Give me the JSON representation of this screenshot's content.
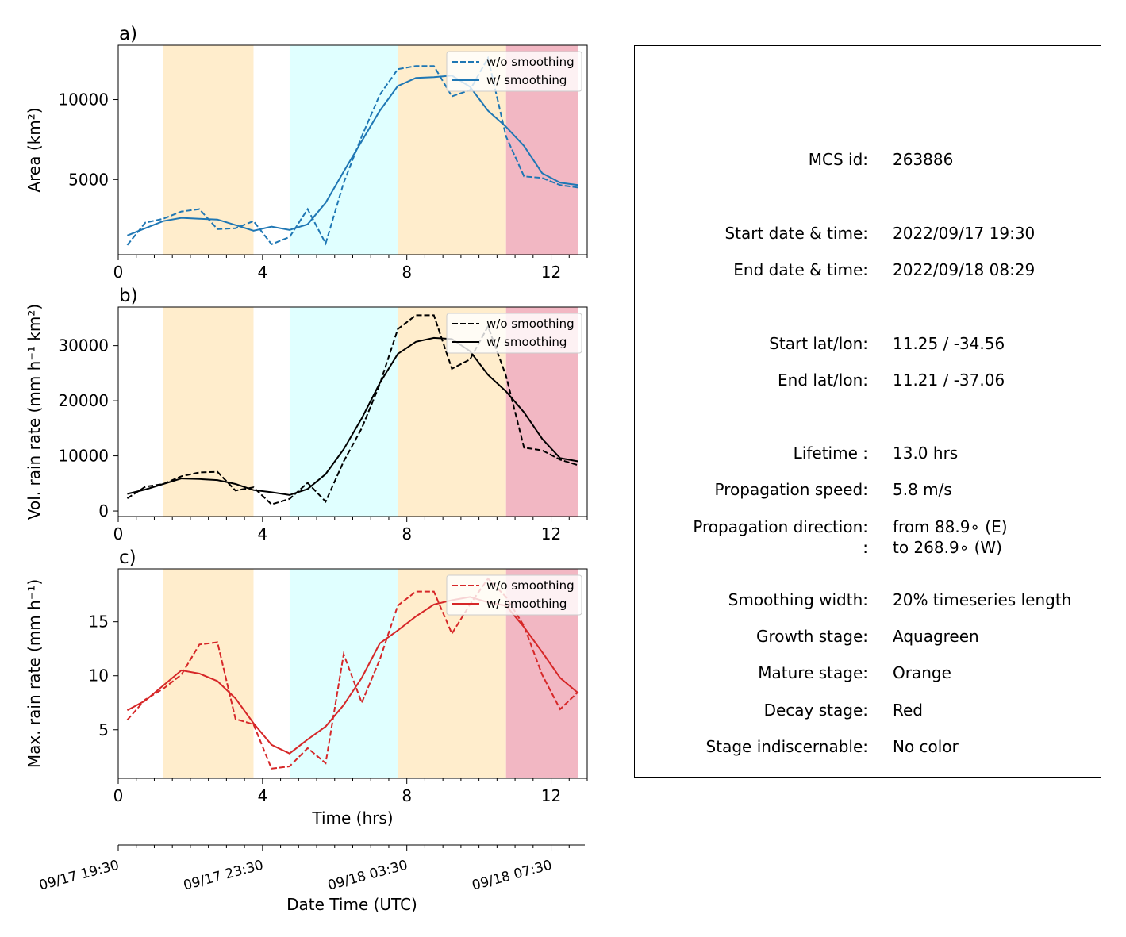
{
  "colors": {
    "blue": "#1f77b4",
    "black": "#000000",
    "red": "#d62728",
    "growth_band": "#e0ffff",
    "mature_band": "#ffedcc",
    "decay_band": "#f2b7c3"
  },
  "stage_bands": [
    {
      "stage": "mature",
      "x0": 1.25,
      "x1": 3.75
    },
    {
      "stage": "growth",
      "x0": 4.75,
      "x1": 7.75
    },
    {
      "stage": "mature",
      "x0": 7.75,
      "x1": 10.75
    },
    {
      "stage": "decay",
      "x0": 10.75,
      "x1": 12.75
    }
  ],
  "chart_data": [
    {
      "type": "line",
      "panel_label": "a)",
      "ylabel": "Area  (km²)",
      "xlim": [
        0,
        13
      ],
      "ylim": [
        300,
        13400
      ],
      "xticks": [
        "0",
        "4",
        "8",
        "12"
      ],
      "yticks": [
        "5000",
        "10000"
      ],
      "ytick_values": [
        5000,
        10000
      ],
      "grid": false,
      "legend": "top-right",
      "color": "#1f77b4",
      "x": [
        0.25,
        0.75,
        1.25,
        1.75,
        2.25,
        2.75,
        3.25,
        3.75,
        4.25,
        4.75,
        5.25,
        5.75,
        6.25,
        6.75,
        7.25,
        7.75,
        8.25,
        8.75,
        9.25,
        9.75,
        10.25,
        10.75,
        11.25,
        11.75,
        12.25,
        12.75
      ],
      "series": [
        {
          "name": "w/o smoothing",
          "style": "dashed",
          "values": [
            900,
            2300,
            2550,
            3000,
            3150,
            1900,
            1950,
            2400,
            950,
            1400,
            3150,
            1000,
            4800,
            7700,
            10300,
            11900,
            12100,
            12100,
            10200,
            10600,
            12600,
            7700,
            5200,
            5100,
            4650,
            4500
          ]
        },
        {
          "name": "w/ smoothing",
          "style": "solid",
          "values": [
            1500,
            1950,
            2400,
            2600,
            2550,
            2500,
            2150,
            1800,
            2050,
            1850,
            2200,
            3550,
            5500,
            7400,
            9300,
            10850,
            11350,
            11400,
            11500,
            10800,
            9300,
            8300,
            7100,
            5400,
            4800,
            4650
          ]
        }
      ]
    },
    {
      "type": "line",
      "panel_label": "b)",
      "ylabel": "Vol. rain rate (mm h⁻¹ km²)",
      "xlim": [
        0,
        13
      ],
      "ylim": [
        -1000,
        37000
      ],
      "xticks": [
        "0",
        "4",
        "8",
        "12"
      ],
      "yticks": [
        "0",
        "10000",
        "20000",
        "30000"
      ],
      "ytick_values": [
        0,
        10000,
        20000,
        30000
      ],
      "grid": false,
      "legend": "top-right",
      "color": "#000000",
      "x": [
        0.25,
        0.75,
        1.25,
        1.75,
        2.25,
        2.75,
        3.25,
        3.75,
        4.25,
        4.75,
        5.25,
        5.75,
        6.25,
        6.75,
        7.25,
        7.75,
        8.25,
        8.75,
        9.25,
        9.75,
        10.25,
        10.75,
        11.25,
        11.75,
        12.25,
        12.75
      ],
      "series": [
        {
          "name": "w/o smoothing",
          "style": "dashed",
          "values": [
            2300,
            4400,
            4900,
            6300,
            7000,
            7100,
            3700,
            4300,
            1200,
            2200,
            5100,
            1700,
            9000,
            15000,
            23000,
            33000,
            35500,
            35500,
            25800,
            27500,
            33500,
            24500,
            11500,
            11000,
            9300,
            8300
          ]
        },
        {
          "name": "w/ smoothing",
          "style": "solid",
          "values": [
            3100,
            3900,
            4900,
            5900,
            5800,
            5600,
            4900,
            3800,
            3400,
            2900,
            4000,
            6700,
            11200,
            16800,
            23200,
            28500,
            30700,
            31400,
            31200,
            29000,
            24700,
            21700,
            17900,
            13100,
            9600,
            9000
          ]
        }
      ]
    },
    {
      "type": "line",
      "panel_label": "c)",
      "ylabel": "Max. rain rate  (mm h⁻¹)",
      "xlabel": "Time (hrs)",
      "xlim": [
        0,
        13
      ],
      "ylim": [
        0.5,
        19.9
      ],
      "xticks": [
        "0",
        "4",
        "8",
        "12"
      ],
      "yticks": [
        "5",
        "10",
        "15"
      ],
      "ytick_values": [
        5,
        10,
        15
      ],
      "grid": false,
      "legend": "top-right",
      "color": "#d62728",
      "x": [
        0.25,
        0.75,
        1.25,
        1.75,
        2.25,
        2.75,
        3.25,
        3.75,
        4.25,
        4.75,
        5.25,
        5.75,
        6.25,
        6.75,
        7.25,
        7.75,
        8.25,
        8.75,
        9.25,
        9.75,
        10.25,
        10.75,
        11.25,
        11.75,
        12.25,
        12.75
      ],
      "series": [
        {
          "name": "w/o smoothing",
          "style": "dashed",
          "values": [
            5.9,
            7.8,
            8.8,
            10.1,
            12.9,
            13.1,
            6.0,
            5.5,
            1.4,
            1.6,
            3.3,
            1.9,
            12.0,
            7.5,
            11.5,
            16.5,
            17.8,
            17.8,
            13.9,
            16.6,
            19.0,
            17.3,
            14.6,
            10.1,
            6.9,
            8.5
          ]
        },
        {
          "name": "w/ smoothing",
          "style": "solid",
          "values": [
            6.8,
            7.7,
            9.1,
            10.5,
            10.2,
            9.5,
            7.9,
            5.6,
            3.6,
            2.8,
            4.1,
            5.3,
            7.3,
            9.8,
            13.0,
            14.2,
            15.5,
            16.6,
            17.0,
            17.3,
            16.8,
            16.5,
            14.5,
            12.2,
            9.8,
            8.4
          ]
        }
      ]
    }
  ],
  "time_axis": {
    "xlabel": "Date Time (UTC)",
    "ticks": [
      {
        "hours": 0,
        "label": "09/17 19:30"
      },
      {
        "hours": 4,
        "label": "09/17 23:30"
      },
      {
        "hours": 8,
        "label": "09/18 03:30"
      },
      {
        "hours": 12,
        "label": "09/18 07:30"
      }
    ]
  },
  "info_panel": {
    "mcs_id_label": "MCS id:",
    "mcs_id_value": "263886",
    "start_time_label": "Start date & time:",
    "start_time_value": "2022/09/17 19:30",
    "end_time_label": "End date & time:",
    "end_time_value": "2022/09/18 08:29",
    "start_latlon_label": "Start lat/lon:",
    "start_latlon_value": "11.25 / -34.56",
    "end_latlon_label": "End lat/lon:",
    "end_latlon_value": "11.21 / -37.06",
    "lifetime_label": "Lifetime :",
    "lifetime_value": "13.0 hrs",
    "speed_label": "Propagation speed:",
    "speed_value": "5.8 m/s",
    "direction_label": "Propagation direction:",
    "direction_value": "from  88.9∘ (E)",
    "direction_label2": ":",
    "direction_value2": "to   268.9∘ (W)",
    "smoothing_label": "Smoothing width:",
    "smoothing_value": "20% timeseries length",
    "growth_label": "Growth stage:",
    "growth_value": "Aquagreen",
    "mature_label": "Mature stage:",
    "mature_value": "Orange",
    "decay_label": "Decay stage:",
    "decay_value": "Red",
    "indisc_label": "Stage indiscernable:",
    "indisc_value": "No color"
  }
}
